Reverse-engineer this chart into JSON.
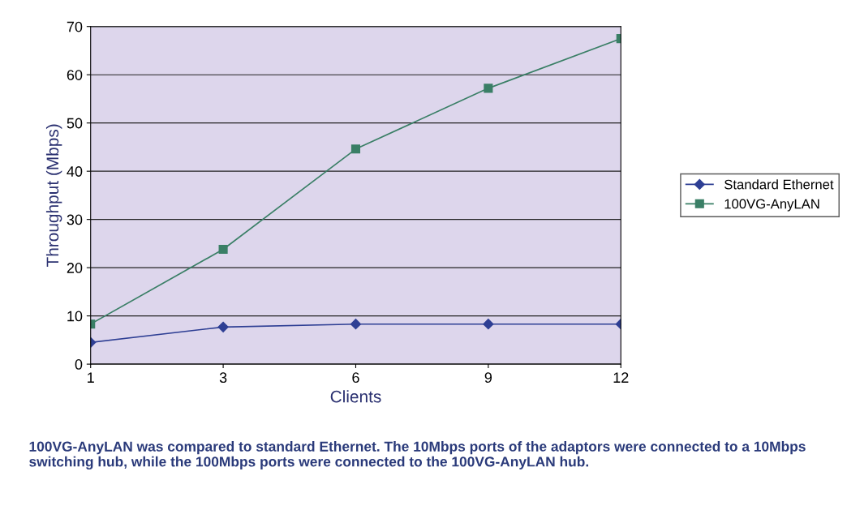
{
  "chart_data": {
    "type": "line",
    "xlabel": "Clients",
    "ylabel": "Throughput (Mbps)",
    "categories": [
      "1",
      "3",
      "6",
      "9",
      "12"
    ],
    "series": [
      {
        "name": "Standard Ethernet",
        "color": "#2e3f94",
        "marker": "diamond",
        "values": [
          4.5,
          7.7,
          8.3,
          8.3,
          8.3
        ]
      },
      {
        "name": "100VG-AnyLAN",
        "color": "#3a7f66",
        "marker": "square",
        "values": [
          8.3,
          23.8,
          44.6,
          57.2,
          67.5
        ]
      }
    ],
    "ylim": [
      0,
      70
    ],
    "yticks": [
      0,
      10,
      20,
      30,
      40,
      50,
      60,
      70
    ],
    "grid": "y",
    "legend": "right",
    "line_style": "solid",
    "annotations": [
      "100VG-AnyLAN was compared to standard Ethernet. The 10Mbps ports of the adaptors were connected to a 10Mbps switching hub, while the 100Mbps ports were connected to the 100VG-AnyLAN hub."
    ]
  }
}
